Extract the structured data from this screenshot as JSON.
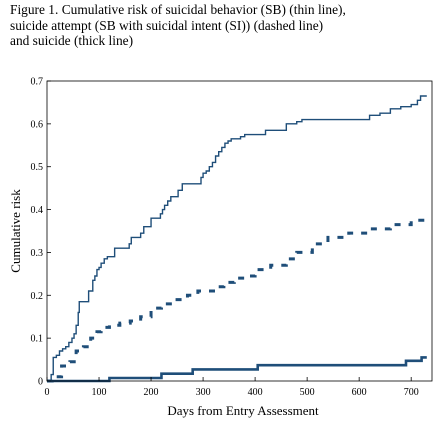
{
  "caption": {
    "lines": [
      "Figure 1. Cumulative risk of suicidal behavior (SB) (thin line),",
      "suicide attempt (SB with suicidal intent (SI)) (dashed line)",
      "and suicide (thick line)"
    ]
  },
  "colors": {
    "series": "#1f4e79",
    "axis": "#000000"
  },
  "chart_data": {
    "type": "line",
    "title": "",
    "xlabel": "Days from Entry Assessment",
    "ylabel": "Cumulative risk",
    "xlim": [
      0,
      740
    ],
    "ylim": [
      0,
      0.7
    ],
    "x_ticks": [
      0,
      100,
      200,
      300,
      400,
      500,
      600,
      700
    ],
    "y_ticks": [
      0,
      0.1,
      0.2,
      0.3,
      0.4,
      0.5,
      0.6,
      0.7
    ],
    "y_tick_labels": [
      "0",
      "0.1",
      "0.2",
      "0.3",
      "0.4",
      "0.5",
      "0.6",
      "0.7"
    ],
    "grid": false,
    "step": true,
    "series": [
      {
        "style": "thin",
        "x": [
          0,
          8,
          12,
          18,
          24,
          30,
          36,
          42,
          48,
          52,
          56,
          60,
          62,
          66,
          80,
          88,
          92,
          96,
          100,
          104,
          110,
          116,
          122,
          130,
          150,
          158,
          162,
          168,
          172,
          180,
          186,
          200,
          212,
          218,
          222,
          226,
          232,
          238,
          244,
          252,
          260,
          270,
          296,
          300,
          306,
          312,
          318,
          324,
          330,
          336,
          342,
          348,
          354,
          358,
          364,
          372,
          380,
          400,
          420,
          460,
          480,
          490,
          510,
          530,
          620,
          640,
          660,
          680,
          700,
          712,
          718,
          730
        ],
        "y": [
          0,
          0.015,
          0.055,
          0.06,
          0.07,
          0.075,
          0.08,
          0.09,
          0.1,
          0.11,
          0.13,
          0.16,
          0.185,
          0.185,
          0.21,
          0.235,
          0.245,
          0.26,
          0.265,
          0.275,
          0.285,
          0.29,
          0.29,
          0.31,
          0.31,
          0.32,
          0.335,
          0.335,
          0.335,
          0.345,
          0.36,
          0.38,
          0.38,
          0.39,
          0.4,
          0.41,
          0.42,
          0.43,
          0.43,
          0.445,
          0.46,
          0.46,
          0.475,
          0.485,
          0.49,
          0.5,
          0.51,
          0.525,
          0.535,
          0.545,
          0.555,
          0.56,
          0.565,
          0.565,
          0.565,
          0.57,
          0.575,
          0.575,
          0.585,
          0.6,
          0.605,
          0.61,
          0.61,
          0.61,
          0.62,
          0.625,
          0.635,
          0.64,
          0.645,
          0.655,
          0.665,
          0.665
        ]
      },
      {
        "style": "dashed",
        "x": [
          0,
          10,
          28,
          44,
          56,
          70,
          84,
          96,
          104,
          120,
          140,
          160,
          180,
          200,
          220,
          240,
          270,
          290,
          320,
          340,
          360,
          380,
          400,
          430,
          460,
          480,
          510,
          540,
          580,
          620,
          660,
          700,
          730
        ],
        "y": [
          0,
          0.01,
          0.035,
          0.045,
          0.07,
          0.08,
          0.1,
          0.115,
          0.125,
          0.13,
          0.135,
          0.14,
          0.15,
          0.17,
          0.18,
          0.19,
          0.2,
          0.21,
          0.22,
          0.23,
          0.24,
          0.245,
          0.26,
          0.27,
          0.285,
          0.3,
          0.32,
          0.335,
          0.345,
          0.355,
          0.365,
          0.375,
          0.375
        ]
      },
      {
        "style": "thick",
        "x": [
          0,
          120,
          220,
          280,
          405,
          560,
          690,
          720,
          730
        ],
        "y": [
          0,
          0.007,
          0.017,
          0.027,
          0.037,
          0.037,
          0.047,
          0.055,
          0.055
        ]
      }
    ]
  }
}
